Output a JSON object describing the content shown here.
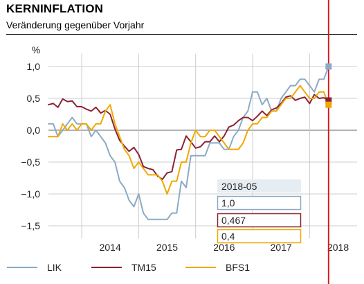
{
  "header": {
    "title": "KERNINFLATION",
    "subtitle": "Veränderung gegenüber Vorjahr"
  },
  "colors": {
    "LIK": "#8caac4",
    "TM15": "#8b2232",
    "BFS1": "#f0a800",
    "cursor": "#d71920",
    "grid": "#cccccc",
    "zero_line": "#999999"
  },
  "tooltip": {
    "date": "2018-05",
    "values": [
      "1,0",
      "0,467",
      "0,4"
    ]
  },
  "chart_data": {
    "type": "line",
    "title": "KERNINFLATION",
    "subtitle": "Veränderung gegenüber Vorjahr",
    "ylabel": "%",
    "ylim": [
      -1.7,
      1.2
    ],
    "yticks": [
      1.0,
      0.5,
      0.0,
      -0.5,
      -1.0,
      -1.5
    ],
    "ytick_labels": [
      "1,0",
      "0,5",
      "0,0",
      "−0,5",
      "−1,0",
      "−1,5"
    ],
    "xlim": [
      "2013-06",
      "2018-11"
    ],
    "year_labels": [
      "2014",
      "2015",
      "2016",
      "2017",
      "2018"
    ],
    "grid": true,
    "legend_position": "bottom",
    "cursor_date": "2018-05",
    "series": [
      {
        "name": "LIK",
        "start": "2013-06",
        "values": [
          0.1,
          0.1,
          -0.1,
          0.0,
          0.1,
          0.2,
          0.1,
          0.1,
          0.1,
          -0.1,
          0.0,
          -0.1,
          -0.2,
          -0.4,
          -0.5,
          -0.8,
          -0.9,
          -1.1,
          -1.2,
          -1.0,
          -1.3,
          -1.4,
          -1.4,
          -1.4,
          -1.4,
          -1.4,
          -1.3,
          -1.3,
          -0.8,
          -0.9,
          -0.4,
          -0.4,
          -0.4,
          -0.4,
          -0.2,
          -0.2,
          -0.2,
          -0.3,
          -0.3,
          -0.1,
          0.0,
          0.2,
          0.3,
          0.6,
          0.6,
          0.4,
          0.5,
          0.3,
          0.3,
          0.5,
          0.6,
          0.7,
          0.7,
          0.8,
          0.8,
          0.7,
          0.6,
          0.8,
          0.8,
          1.0
        ]
      },
      {
        "name": "TM15",
        "start": "2013-06",
        "values": [
          0.4,
          0.42,
          0.36,
          0.49,
          0.45,
          0.46,
          0.37,
          0.37,
          0.33,
          0.3,
          0.36,
          0.27,
          0.31,
          0.25,
          0.02,
          -0.16,
          -0.25,
          -0.33,
          -0.27,
          -0.38,
          -0.57,
          -0.6,
          -0.62,
          -0.72,
          -0.77,
          -0.67,
          -0.65,
          -0.31,
          -0.3,
          -0.09,
          -0.18,
          -0.28,
          -0.26,
          -0.18,
          -0.18,
          -0.09,
          -0.18,
          -0.09,
          0.05,
          0.08,
          0.15,
          0.2,
          0.2,
          0.15,
          0.22,
          0.3,
          0.23,
          0.32,
          0.35,
          0.42,
          0.52,
          0.54,
          0.47,
          0.5,
          0.52,
          0.42,
          0.56,
          0.5,
          0.51,
          0.467
        ]
      },
      {
        "name": "BFS1",
        "start": "2013-06",
        "values": [
          -0.1,
          -0.1,
          -0.1,
          0.1,
          0.0,
          0.1,
          0.0,
          0.1,
          0.1,
          0.0,
          0.1,
          0.1,
          0.3,
          0.4,
          0.1,
          -0.1,
          -0.3,
          -0.4,
          -0.6,
          -0.5,
          -0.6,
          -0.7,
          -0.7,
          -0.7,
          -0.8,
          -1.0,
          -0.8,
          -0.8,
          -0.5,
          -0.5,
          -0.2,
          0.0,
          -0.1,
          -0.1,
          0.0,
          0.0,
          -0.1,
          -0.2,
          -0.3,
          -0.3,
          -0.3,
          -0.2,
          0.0,
          0.1,
          0.1,
          0.2,
          0.2,
          0.3,
          0.3,
          0.4,
          0.5,
          0.5,
          0.6,
          0.7,
          0.6,
          0.5,
          0.5,
          0.6,
          0.6,
          0.4
        ]
      }
    ]
  }
}
